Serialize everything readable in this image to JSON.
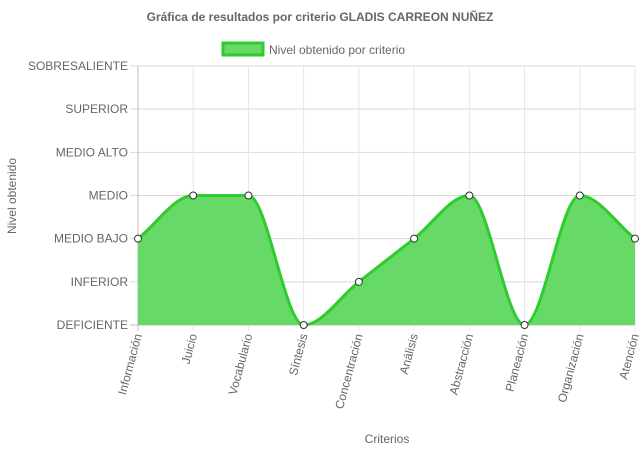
{
  "chart_data": {
    "type": "area",
    "title": "Gráfica de resultados por criterio GLADIS CARREON NUÑEZ",
    "xlabel": "Criterios",
    "ylabel": "Nivel obtenido",
    "categories": [
      "Información",
      "Juicio",
      "Vocabulario",
      "Síntesis",
      "Concentración",
      "Análisis",
      "Abstracción",
      "Planeación",
      "Organización",
      "Atención"
    ],
    "y_levels": [
      "DEFICIENTE",
      "INFERIOR",
      "MEDIO BAJO",
      "MEDIO",
      "MEDIO ALTO",
      "SUPERIOR",
      "SOBRESALIENTE"
    ],
    "series": [
      {
        "name": "Nivel obtenido por criterio",
        "values": [
          2,
          3,
          3,
          0,
          1,
          2,
          3,
          0,
          3,
          2
        ],
        "color": "#2ecc2e",
        "fill": "#66d966"
      }
    ],
    "ylim": [
      0,
      6
    ],
    "grid": true,
    "legend": "top"
  }
}
